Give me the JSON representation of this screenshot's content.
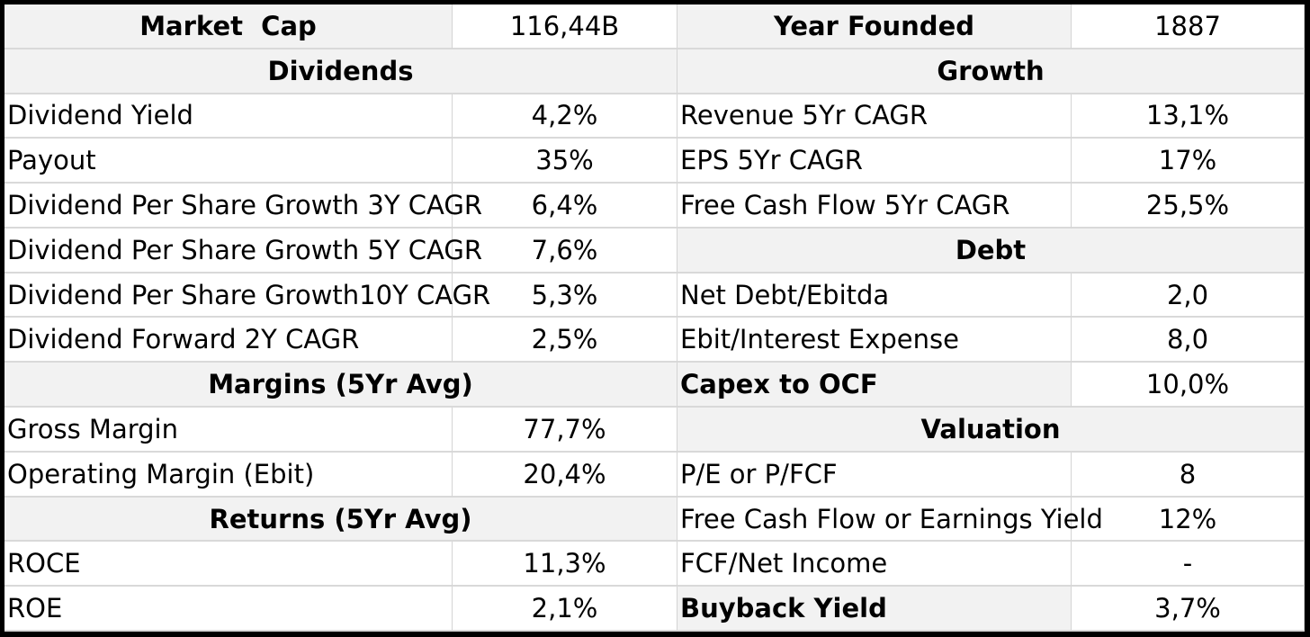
{
  "top": {
    "market_cap_label": "Market  Cap",
    "market_cap_value": "116,44B",
    "year_founded_label": "Year Founded",
    "year_founded_value": "1887"
  },
  "left": {
    "dividends_header": "Dividends",
    "dividend_yield_label": "Dividend Yield",
    "dividend_yield_value": "4,2%",
    "payout_label": "Payout",
    "payout_value": "35%",
    "dps_growth_3y_label": "Dividend Per Share Growth 3Y CAGR",
    "dps_growth_3y_value": "6,4%",
    "dps_growth_5y_label": "Dividend Per Share Growth 5Y CAGR",
    "dps_growth_5y_value": "7,6%",
    "dps_growth_10y_label": "Dividend Per Share Growth10Y CAGR",
    "dps_growth_10y_value": "5,3%",
    "dividend_forward_label": "Dividend Forward 2Y CAGR",
    "dividend_forward_value": "2,5%",
    "margins_header": "Margins (5Yr Avg)",
    "gross_margin_label": "Gross Margin",
    "gross_margin_value": "77,7%",
    "operating_margin_label": "Operating Margin (Ebit)",
    "operating_margin_value": "20,4%",
    "returns_header": "Returns (5Yr Avg)",
    "roce_label": "ROCE",
    "roce_value": "11,3%",
    "roe_label": "ROE",
    "roe_value": "2,1%"
  },
  "right": {
    "growth_header": "Growth",
    "revenue_cagr_label": "Revenue 5Yr CAGR",
    "revenue_cagr_value": "13,1%",
    "eps_cagr_label": "EPS 5Yr CAGR",
    "eps_cagr_value": "17%",
    "fcf_cagr_label": "Free Cash Flow 5Yr CAGR",
    "fcf_cagr_value": "25,5%",
    "debt_header": "Debt",
    "net_debt_label": "Net Debt/Ebitda",
    "net_debt_value": "2,0",
    "ebit_interest_label": "Ebit/Interest Expense",
    "ebit_interest_value": "8,0",
    "capex_label": "Capex to OCF",
    "capex_value": "10,0%",
    "valuation_header": "Valuation",
    "pe_label": "P/E or P/FCF",
    "pe_value": "8",
    "fcf_yield_label": "Free Cash Flow or Earnings Yield",
    "fcf_yield_value": "12%",
    "fcf_ni_label": "FCF/Net Income",
    "fcf_ni_value": "-",
    "buyback_label": "Buyback Yield",
    "buyback_value": "3,7%"
  },
  "colors": {
    "header_bg": "#f2f2f2",
    "border": "#000000",
    "grid_line": "#d9d9d9"
  }
}
